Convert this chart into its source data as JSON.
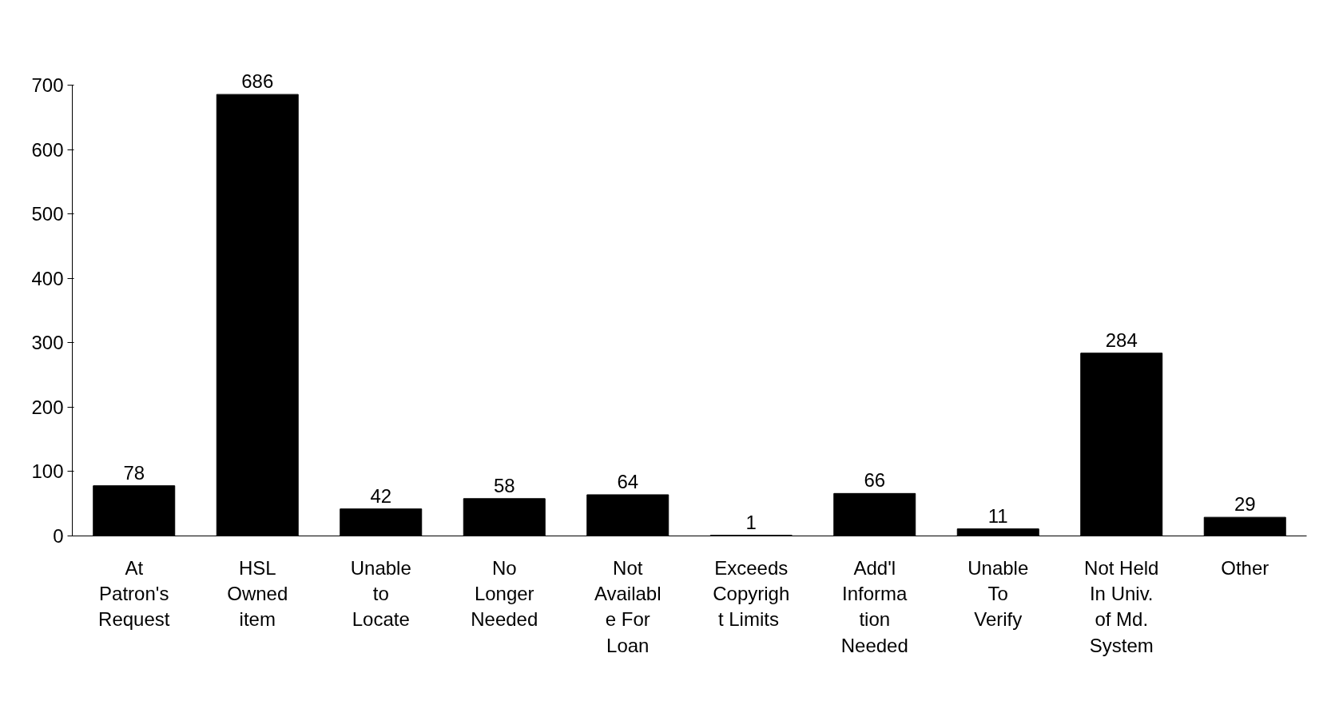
{
  "chart_data": {
    "type": "bar",
    "categories": [
      "At\nPatron's\nRequest",
      "HSL\nOwned\nitem",
      "Unable\nto\nLocate",
      "No\nLonger\nNeeded",
      "Not\nAvailabl\ne For\nLoan",
      "Exceeds\nCopyrigh\nt  Limits",
      "Add'l\nInforma\ntion\nNeeded",
      "Unable\nTo\nVerify",
      "Not Held\nIn Univ.\nof Md.\nSystem",
      "Other"
    ],
    "values": [
      78,
      686,
      42,
      58,
      64,
      1,
      66,
      11,
      284,
      29
    ],
    "color": "#000000",
    "ylim": [
      0,
      700
    ],
    "yticks": [
      0,
      100,
      200,
      300,
      400,
      500,
      600,
      700
    ],
    "grid": false,
    "data_labels": true
  }
}
